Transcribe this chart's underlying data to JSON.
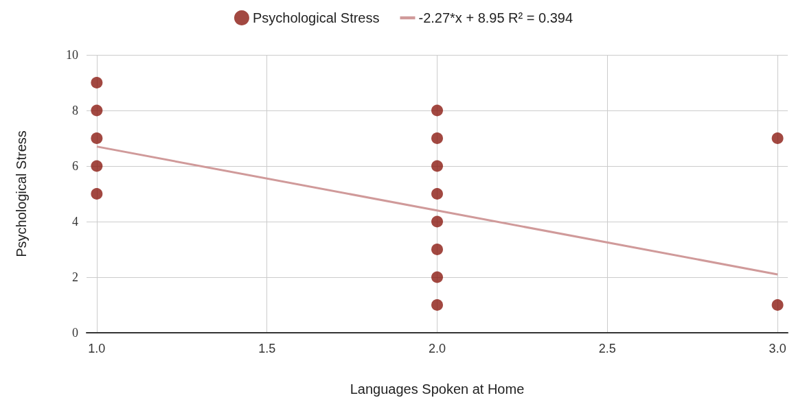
{
  "chart_data": {
    "type": "scatter",
    "xlabel": "Languages Spoken at Home",
    "ylabel": "Psychological Stress",
    "xlim": [
      0.97,
      3.03
    ],
    "xticks": [
      {
        "value": 1,
        "label": "1.0"
      },
      {
        "value": 1.5,
        "label": "1.5"
      },
      {
        "value": 2,
        "label": "2.0"
      },
      {
        "value": 2.5,
        "label": "2.5"
      },
      {
        "value": 3,
        "label": "3.0"
      }
    ],
    "ylim": [
      0,
      10
    ],
    "yticks": [
      0,
      2,
      4,
      6,
      8,
      10
    ],
    "grid": true,
    "legend": "top",
    "series": [
      {
        "name": "Psychological Stress",
        "marker": "circle",
        "color": "#8b1a12",
        "x": [
          1,
          1,
          1,
          1,
          1,
          2,
          2,
          2,
          2,
          2,
          2,
          2,
          2,
          3,
          3
        ],
        "values": [
          5,
          6,
          7,
          8,
          9,
          1,
          2,
          3,
          4,
          5,
          6,
          7,
          8,
          1,
          7
        ]
      },
      {
        "name": "-2.27*x + 8.95 R² = 0.394",
        "type": "line",
        "marker": "none",
        "color": "#d09a9a",
        "line_style": "solid",
        "x": [
          1,
          3
        ],
        "values": [
          6.7,
          2.1
        ]
      }
    ]
  }
}
